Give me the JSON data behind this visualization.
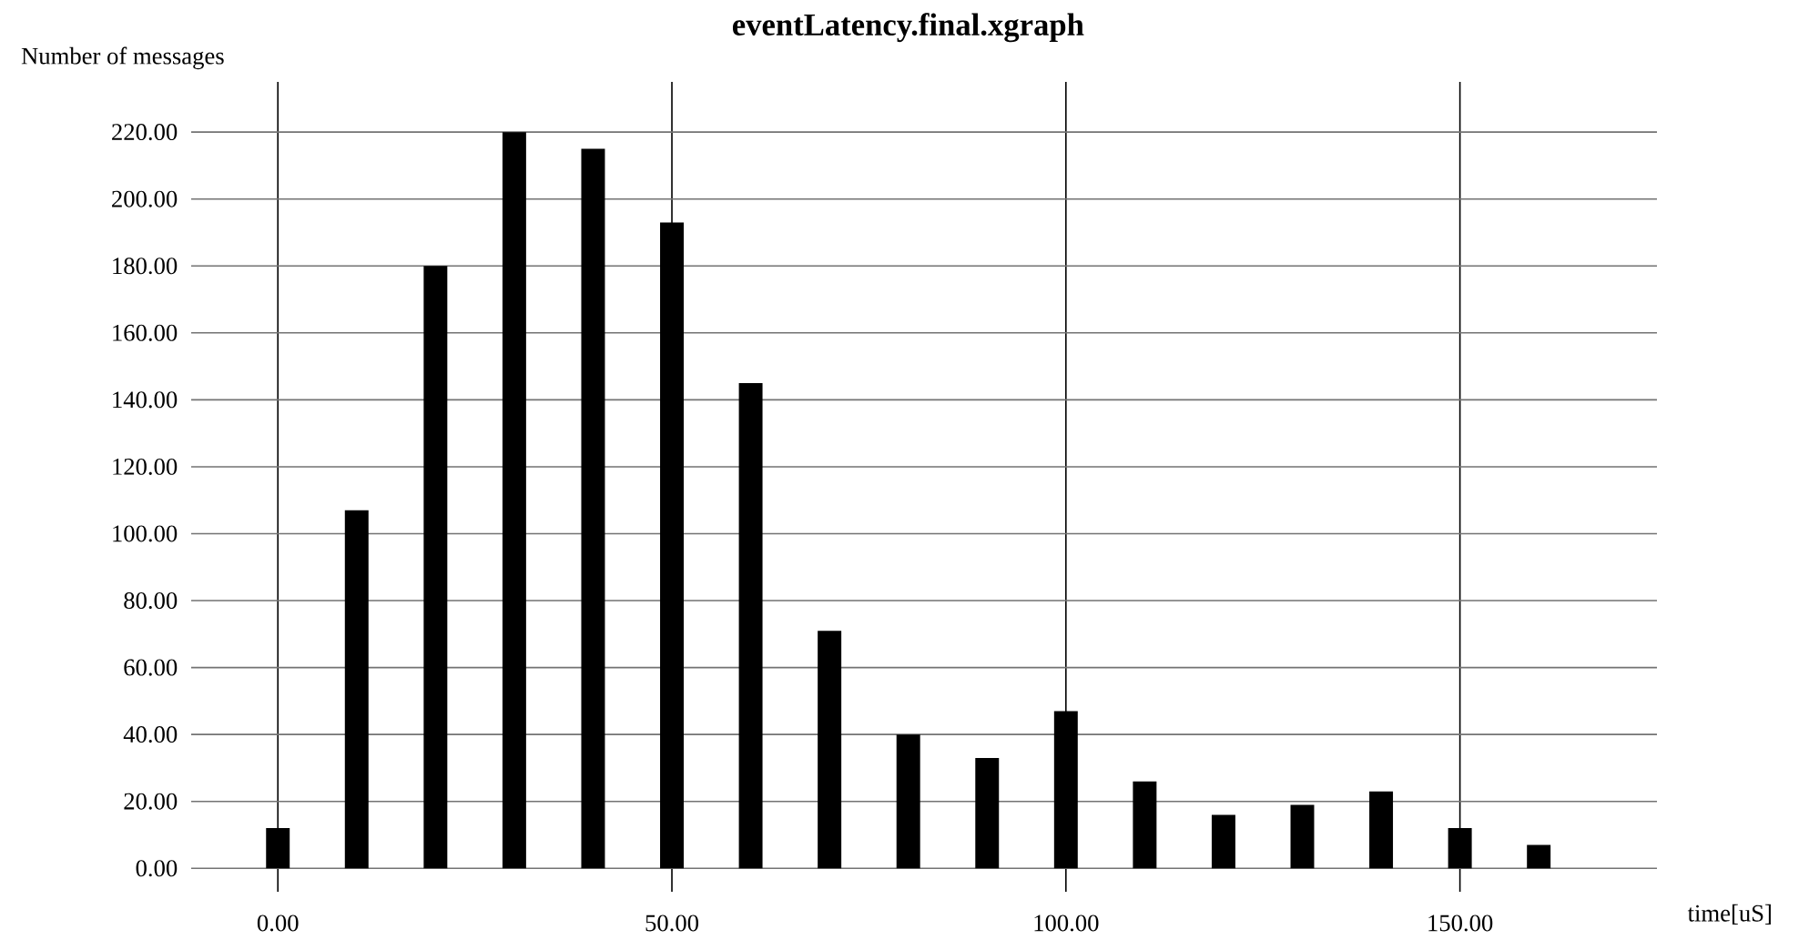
{
  "chart_data": {
    "type": "bar",
    "title": "eventLatency.final.xgraph",
    "xlabel": "time[uS]",
    "ylabel": "Number of messages",
    "x": [
      0,
      10,
      20,
      30,
      40,
      50,
      60,
      70,
      80,
      90,
      100,
      110,
      120,
      130,
      140,
      150,
      160
    ],
    "values": [
      12,
      107,
      180,
      220,
      215,
      193,
      145,
      71,
      40,
      33,
      47,
      26,
      16,
      19,
      23,
      12,
      7
    ],
    "color": "#000000",
    "xlim": [
      -11,
      175
    ],
    "ylim": [
      -7,
      235
    ],
    "xticks": [
      {
        "value": 0,
        "label": "0.00"
      },
      {
        "value": 50,
        "label": "50.00"
      },
      {
        "value": 100,
        "label": "100.00"
      },
      {
        "value": 150,
        "label": "150.00"
      }
    ],
    "yticks": [
      {
        "value": 0,
        "label": "0.00"
      },
      {
        "value": 20,
        "label": "20.00"
      },
      {
        "value": 40,
        "label": "40.00"
      },
      {
        "value": 60,
        "label": "60.00"
      },
      {
        "value": 80,
        "label": "80.00"
      },
      {
        "value": 100,
        "label": "100.00"
      },
      {
        "value": 120,
        "label": "120.00"
      },
      {
        "value": 140,
        "label": "140.00"
      },
      {
        "value": 160,
        "label": "160.00"
      },
      {
        "value": 180,
        "label": "180.00"
      },
      {
        "value": 200,
        "label": "200.00"
      },
      {
        "value": 220,
        "label": "220.00"
      }
    ],
    "grid": true
  }
}
